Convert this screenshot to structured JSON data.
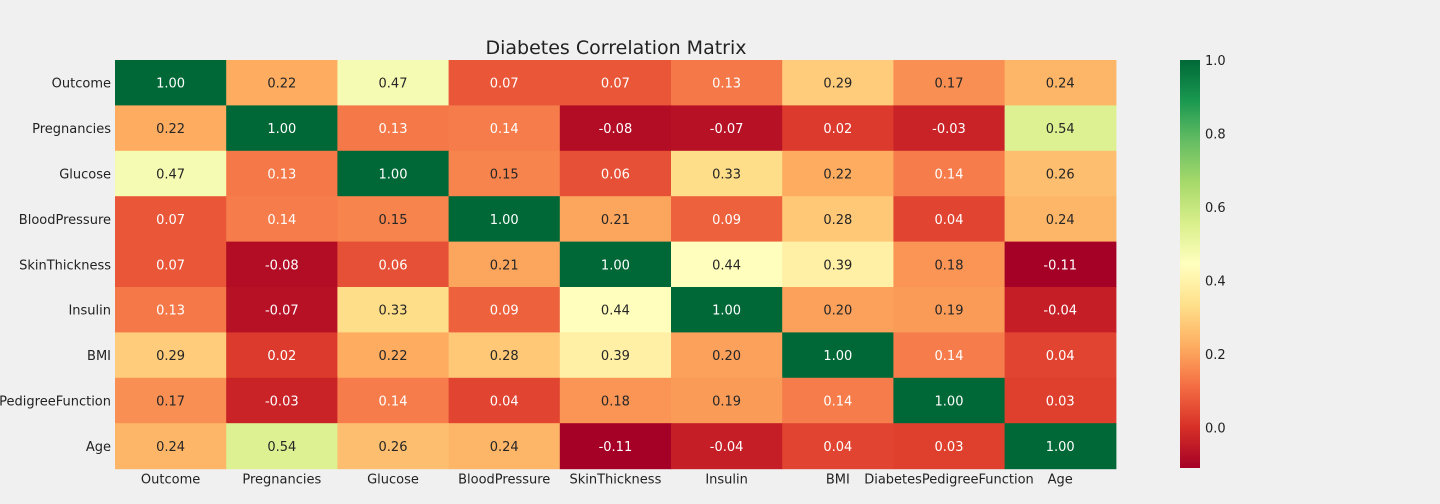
{
  "chart_data": {
    "type": "heatmap",
    "title": "Diabetes Correlation Matrix",
    "row_labels": [
      "Outcome",
      "Pregnancies",
      "Glucose",
      "BloodPressure",
      "SkinThickness",
      "Insulin",
      "BMI",
      "DiabetesPedigreeFunction",
      "Age"
    ],
    "col_labels": [
      "Outcome",
      "Pregnancies",
      "Glucose",
      "BloodPressure",
      "SkinThickness",
      "Insulin",
      "BMI",
      "DiabetesPedigreeFunction",
      "Age"
    ],
    "values": [
      [
        1.0,
        0.22,
        0.47,
        0.07,
        0.07,
        0.13,
        0.29,
        0.17,
        0.24
      ],
      [
        0.22,
        1.0,
        0.13,
        0.14,
        -0.08,
        -0.07,
        0.02,
        -0.03,
        0.54
      ],
      [
        0.47,
        0.13,
        1.0,
        0.15,
        0.06,
        0.33,
        0.22,
        0.14,
        0.26
      ],
      [
        0.07,
        0.14,
        0.15,
        1.0,
        0.21,
        0.09,
        0.28,
        0.04,
        0.24
      ],
      [
        0.07,
        -0.08,
        0.06,
        0.21,
        1.0,
        0.44,
        0.39,
        0.18,
        -0.11
      ],
      [
        0.13,
        -0.07,
        0.33,
        0.09,
        0.44,
        1.0,
        0.2,
        0.19,
        -0.04
      ],
      [
        0.29,
        0.02,
        0.22,
        0.28,
        0.39,
        0.2,
        1.0,
        0.14,
        0.04
      ],
      [
        0.17,
        -0.03,
        0.14,
        0.04,
        0.18,
        0.19,
        0.14,
        1.0,
        0.03
      ],
      [
        0.24,
        0.54,
        0.26,
        0.24,
        -0.11,
        -0.04,
        0.04,
        0.03,
        1.0
      ]
    ],
    "colormap": "RdYlGn",
    "vmin": -0.11,
    "vmax": 1.0,
    "value_format": "0.00",
    "colorbar_ticks": [
      "0.0",
      "0.2",
      "0.4",
      "0.6",
      "0.8",
      "1.0"
    ],
    "background_color": "#f0f0f0"
  }
}
